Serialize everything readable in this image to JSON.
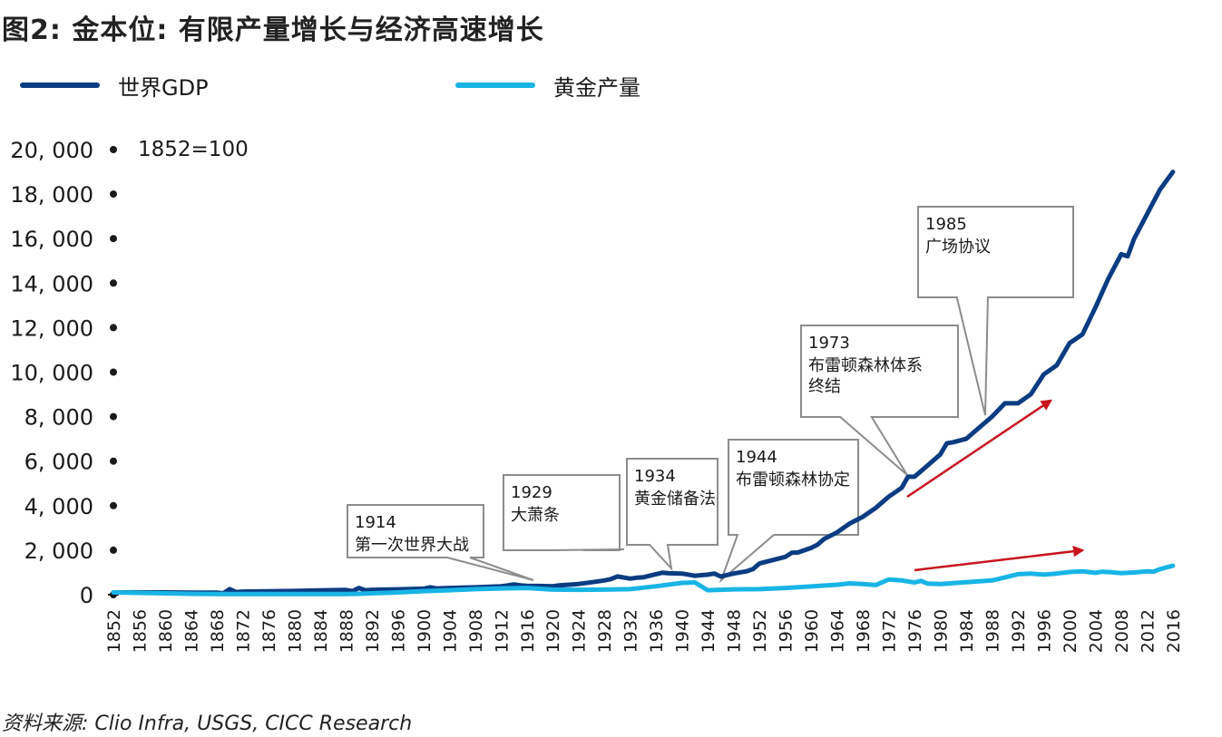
{
  "title": "图2: 金本位: 有限产量增长与经济高速增长",
  "legend": [
    {
      "label": "世界GDP",
      "color": "#0a3c82"
    },
    {
      "label": "黄金产量",
      "color": "#18b4e6"
    }
  ],
  "source": "资料来源: Clio Infra, USGS, CICC Research",
  "chart_data": {
    "type": "line",
    "note": "1852=100",
    "ylim": [
      0,
      20000
    ],
    "yticks": [
      {
        "value": 0,
        "label": "0"
      },
      {
        "value": 2000,
        "label": "2, 000"
      },
      {
        "value": 4000,
        "label": "4, 000"
      },
      {
        "value": 6000,
        "label": "6, 000"
      },
      {
        "value": 8000,
        "label": "8, 000"
      },
      {
        "value": 10000,
        "label": "10, 000"
      },
      {
        "value": 12000,
        "label": "12, 000"
      },
      {
        "value": 14000,
        "label": "14, 000"
      },
      {
        "value": 16000,
        "label": "16, 000"
      },
      {
        "value": 18000,
        "label": "18, 000"
      },
      {
        "value": 20000,
        "label": "20, 000"
      }
    ],
    "xlim": [
      1852,
      2017
    ],
    "xticks": [
      1852,
      1856,
      1860,
      1864,
      1868,
      1872,
      1876,
      1880,
      1884,
      1888,
      1892,
      1896,
      1900,
      1904,
      1908,
      1912,
      1916,
      1920,
      1924,
      1928,
      1932,
      1936,
      1940,
      1944,
      1948,
      1952,
      1956,
      1960,
      1964,
      1968,
      1972,
      1976,
      1980,
      1984,
      1988,
      1992,
      1996,
      2000,
      2004,
      2008,
      2012,
      2016
    ],
    "series": [
      {
        "name": "世界GDP",
        "color": "#0a3c82",
        "points": [
          [
            1852,
            100
          ],
          [
            1856,
            100
          ],
          [
            1860,
            100
          ],
          [
            1864,
            90
          ],
          [
            1868,
            95
          ],
          [
            1869,
            60
          ],
          [
            1870,
            250
          ],
          [
            1871,
            120
          ],
          [
            1872,
            140
          ],
          [
            1876,
            150
          ],
          [
            1880,
            165
          ],
          [
            1884,
            190
          ],
          [
            1888,
            210
          ],
          [
            1889,
            160
          ],
          [
            1890,
            300
          ],
          [
            1891,
            200
          ],
          [
            1892,
            220
          ],
          [
            1896,
            240
          ],
          [
            1900,
            270
          ],
          [
            1901,
            330
          ],
          [
            1902,
            280
          ],
          [
            1904,
            300
          ],
          [
            1908,
            330
          ],
          [
            1912,
            380
          ],
          [
            1913,
            410
          ],
          [
            1914,
            460
          ],
          [
            1915,
            420
          ],
          [
            1916,
            400
          ],
          [
            1918,
            390
          ],
          [
            1920,
            380
          ],
          [
            1921,
            420
          ],
          [
            1924,
            480
          ],
          [
            1926,
            560
          ],
          [
            1928,
            640
          ],
          [
            1929,
            700
          ],
          [
            1930,
            820
          ],
          [
            1932,
            720
          ],
          [
            1933,
            760
          ],
          [
            1934,
            780
          ],
          [
            1935,
            850
          ],
          [
            1936,
            920
          ],
          [
            1937,
            990
          ],
          [
            1938,
            960
          ],
          [
            1940,
            950
          ],
          [
            1942,
            850
          ],
          [
            1944,
            900
          ],
          [
            1945,
            950
          ],
          [
            1946,
            820
          ],
          [
            1948,
            950
          ],
          [
            1950,
            1050
          ],
          [
            1951,
            1150
          ],
          [
            1952,
            1400
          ],
          [
            1954,
            1550
          ],
          [
            1956,
            1700
          ],
          [
            1957,
            1880
          ],
          [
            1958,
            1900
          ],
          [
            1960,
            2100
          ],
          [
            1961,
            2250
          ],
          [
            1962,
            2500
          ],
          [
            1964,
            2800
          ],
          [
            1966,
            3200
          ],
          [
            1968,
            3500
          ],
          [
            1970,
            3900
          ],
          [
            1972,
            4400
          ],
          [
            1974,
            4800
          ],
          [
            1975,
            5300
          ],
          [
            1976,
            5300
          ],
          [
            1978,
            5800
          ],
          [
            1980,
            6300
          ],
          [
            1981,
            6800
          ],
          [
            1982,
            6850
          ],
          [
            1984,
            7000
          ],
          [
            1986,
            7500
          ],
          [
            1988,
            8000
          ],
          [
            1990,
            8600
          ],
          [
            1992,
            8600
          ],
          [
            1994,
            9000
          ],
          [
            1996,
            9900
          ],
          [
            1998,
            10300
          ],
          [
            2000,
            11300
          ],
          [
            2002,
            11700
          ],
          [
            2004,
            12900
          ],
          [
            2006,
            14200
          ],
          [
            2008,
            15300
          ],
          [
            2009,
            15200
          ],
          [
            2010,
            16000
          ],
          [
            2012,
            17100
          ],
          [
            2014,
            18200
          ],
          [
            2016,
            19000
          ]
        ]
      },
      {
        "name": "黄金产量",
        "color": "#18b4e6",
        "points": [
          [
            1852,
            100
          ],
          [
            1856,
            80
          ],
          [
            1860,
            60
          ],
          [
            1864,
            40
          ],
          [
            1868,
            30
          ],
          [
            1872,
            30
          ],
          [
            1876,
            30
          ],
          [
            1880,
            30
          ],
          [
            1884,
            30
          ],
          [
            1888,
            30
          ],
          [
            1890,
            40
          ],
          [
            1892,
            60
          ],
          [
            1896,
            100
          ],
          [
            1900,
            160
          ],
          [
            1904,
            200
          ],
          [
            1908,
            250
          ],
          [
            1912,
            280
          ],
          [
            1916,
            300
          ],
          [
            1920,
            230
          ],
          [
            1924,
            220
          ],
          [
            1928,
            230
          ],
          [
            1932,
            250
          ],
          [
            1936,
            380
          ],
          [
            1940,
            530
          ],
          [
            1942,
            550
          ],
          [
            1944,
            200
          ],
          [
            1948,
            240
          ],
          [
            1952,
            250
          ],
          [
            1956,
            300
          ],
          [
            1960,
            370
          ],
          [
            1964,
            450
          ],
          [
            1966,
            510
          ],
          [
            1968,
            480
          ],
          [
            1970,
            430
          ],
          [
            1972,
            680
          ],
          [
            1974,
            640
          ],
          [
            1976,
            550
          ],
          [
            1977,
            620
          ],
          [
            1978,
            500
          ],
          [
            1980,
            480
          ],
          [
            1984,
            560
          ],
          [
            1988,
            640
          ],
          [
            1990,
            780
          ],
          [
            1992,
            920
          ],
          [
            1994,
            950
          ],
          [
            1996,
            900
          ],
          [
            1998,
            950
          ],
          [
            2000,
            1020
          ],
          [
            2002,
            1050
          ],
          [
            2004,
            980
          ],
          [
            2005,
            1030
          ],
          [
            2006,
            1020
          ],
          [
            2008,
            970
          ],
          [
            2010,
            1000
          ],
          [
            2012,
            1050
          ],
          [
            2013,
            1030
          ],
          [
            2014,
            1150
          ],
          [
            2016,
            1300
          ]
        ]
      }
    ],
    "annotations": [
      {
        "year": "1914",
        "text": "第一次世界大战"
      },
      {
        "year": "1929",
        "text": "大萧条"
      },
      {
        "year": "1934",
        "text": "黄金储备法"
      },
      {
        "year": "1944",
        "text": "布雷顿森林协定"
      },
      {
        "year": "1973",
        "text": "布雷顿森林体系终结"
      },
      {
        "year": "1985",
        "text": "广场协议"
      }
    ],
    "arrow_color": "#c8141e"
  }
}
